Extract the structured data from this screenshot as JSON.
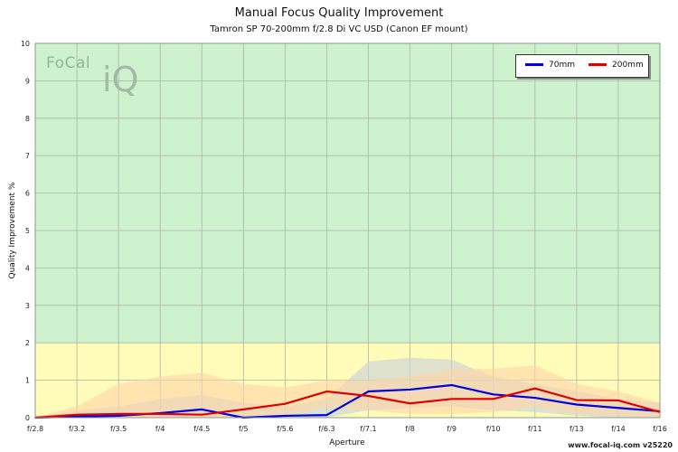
{
  "chart_data": {
    "type": "line",
    "title": "Manual Focus Quality Improvement",
    "subtitle": "Tamron SP 70-200mm f/2.8 Di VC USD (Canon EF mount)",
    "xlabel": "Aperture",
    "ylabel": "Quality Improvement %",
    "categories": [
      "f/2.8",
      "f/3.2",
      "f/3.5",
      "f/4",
      "f/4.5",
      "f/5",
      "f/5.6",
      "f/6.3",
      "f/7.1",
      "f/8",
      "f/9",
      "f/10",
      "f/11",
      "f/13",
      "f/14",
      "f/16"
    ],
    "ylim": [
      0,
      10
    ],
    "yticks": [
      "0",
      "1",
      "2",
      "3",
      "4",
      "5",
      "6",
      "7",
      "8",
      "9",
      "10"
    ],
    "grid": true,
    "legend_position": "top-right",
    "bands": [
      {
        "from": 0,
        "to": 2,
        "color": "#fffbb8"
      },
      {
        "from": 2,
        "to": 10,
        "color": "#cdf2cd"
      }
    ],
    "series": [
      {
        "name": "70mm",
        "color": "#0000e0",
        "values": [
          0,
          0.03,
          0.05,
          0.12,
          0.22,
          0.0,
          0.05,
          0.07,
          0.7,
          0.75,
          0.87,
          0.62,
          0.53,
          0.35,
          0.26,
          0.17
        ],
        "band_color": "#c8d0dc",
        "band_upper": [
          0.02,
          0.2,
          0.3,
          0.5,
          0.6,
          0.4,
          0.3,
          0.5,
          1.5,
          1.6,
          1.55,
          1.1,
          0.9,
          0.7,
          0.5,
          0.4
        ],
        "band_lower": [
          0,
          0,
          0,
          0,
          0,
          0,
          0,
          0,
          0.2,
          0.25,
          0.3,
          0.2,
          0.15,
          0.05,
          0,
          0
        ]
      },
      {
        "name": "200mm",
        "color": "#e00000",
        "values": [
          0,
          0.08,
          0.1,
          0.1,
          0.08,
          0.22,
          0.37,
          0.7,
          0.58,
          0.38,
          0.5,
          0.5,
          0.78,
          0.47,
          0.46,
          0.15
        ],
        "band_color": "#ffd6a8",
        "band_upper": [
          0.02,
          0.3,
          0.9,
          1.1,
          1.2,
          0.9,
          0.8,
          1.0,
          1.0,
          1.1,
          1.3,
          1.3,
          1.4,
          0.9,
          0.7,
          0.4
        ],
        "band_lower": [
          0,
          0,
          0,
          0,
          0,
          0,
          0.05,
          0.3,
          0.2,
          0.1,
          0.1,
          0.15,
          0.3,
          0.1,
          0.05,
          0
        ]
      }
    ]
  },
  "logo": {
    "focal": "FoCal",
    "iq": "iQ"
  },
  "footer": "www.focal-iq.com v25220"
}
